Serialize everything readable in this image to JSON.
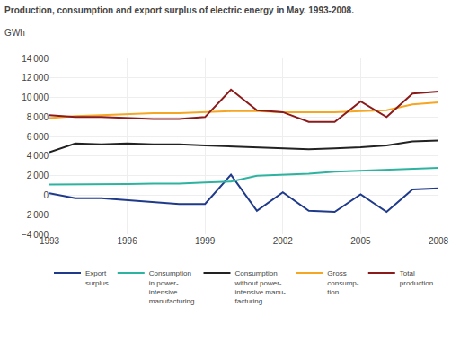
{
  "chart_data": {
    "type": "line",
    "title": "Production, consumption and export surplus of electric energy in May. 1993-2008.",
    "subtitle": "GWh",
    "x": [
      1993,
      1994,
      1995,
      1996,
      1997,
      1998,
      1999,
      2000,
      2001,
      2002,
      2003,
      2004,
      2005,
      2006,
      2007,
      2008
    ],
    "series": [
      {
        "name": "Export\nsurplus",
        "color": "#1f3a8a",
        "values": [
          200,
          -300,
          -300,
          -500,
          -700,
          -900,
          -900,
          2100,
          -1600,
          300,
          -1600,
          -1700,
          100,
          -1700,
          600,
          700
        ]
      },
      {
        "name": "Consumption\nin power-\nintensive\nmanufacturing",
        "color": "#2db3a0",
        "values": [
          1100,
          1100,
          1100,
          1150,
          1200,
          1200,
          1300,
          1400,
          2000,
          2100,
          2200,
          2400,
          2500,
          2600,
          2700,
          2800
        ]
      },
      {
        "name": "Consumption\nwithout power-\nintensive manu-\nfacturing",
        "color": "#222222",
        "values": [
          4400,
          5300,
          5200,
          5300,
          5200,
          5200,
          5100,
          5000,
          4900,
          4800,
          4700,
          4800,
          4900,
          5100,
          5500,
          5600
        ]
      },
      {
        "name": "Gross\nconsump-\ntion",
        "color": "#f5a623",
        "values": [
          7900,
          8100,
          8200,
          8300,
          8400,
          8400,
          8500,
          8600,
          8600,
          8500,
          8500,
          8500,
          8600,
          8700,
          9300,
          9500
        ]
      },
      {
        "name": "Total\nproduction",
        "color": "#8b1a1a",
        "values": [
          8200,
          8000,
          8000,
          7900,
          7800,
          7800,
          8000,
          10800,
          8700,
          8500,
          7500,
          7500,
          9600,
          8000,
          10400,
          10600
        ]
      }
    ],
    "xlim": [
      1993,
      2008
    ],
    "xticks": [
      1993,
      1996,
      1999,
      2002,
      2005,
      2008
    ],
    "ylim": [
      -4000,
      14000
    ],
    "yticks": [
      {
        "value": -4000,
        "label": "−4 000"
      },
      {
        "value": -2000,
        "label": "−2 000"
      },
      0,
      {
        "value": 2000,
        "label": "2 000"
      },
      {
        "value": 4000,
        "label": "4 000"
      },
      {
        "value": 6000,
        "label": "6 000"
      },
      {
        "value": 8000,
        "label": "8 000"
      },
      {
        "value": 10000,
        "label": "10 000"
      },
      {
        "value": 12000,
        "label": "12 000"
      },
      {
        "value": 14000,
        "label": "14 000"
      }
    ],
    "grid": true,
    "legend": "bottom"
  }
}
